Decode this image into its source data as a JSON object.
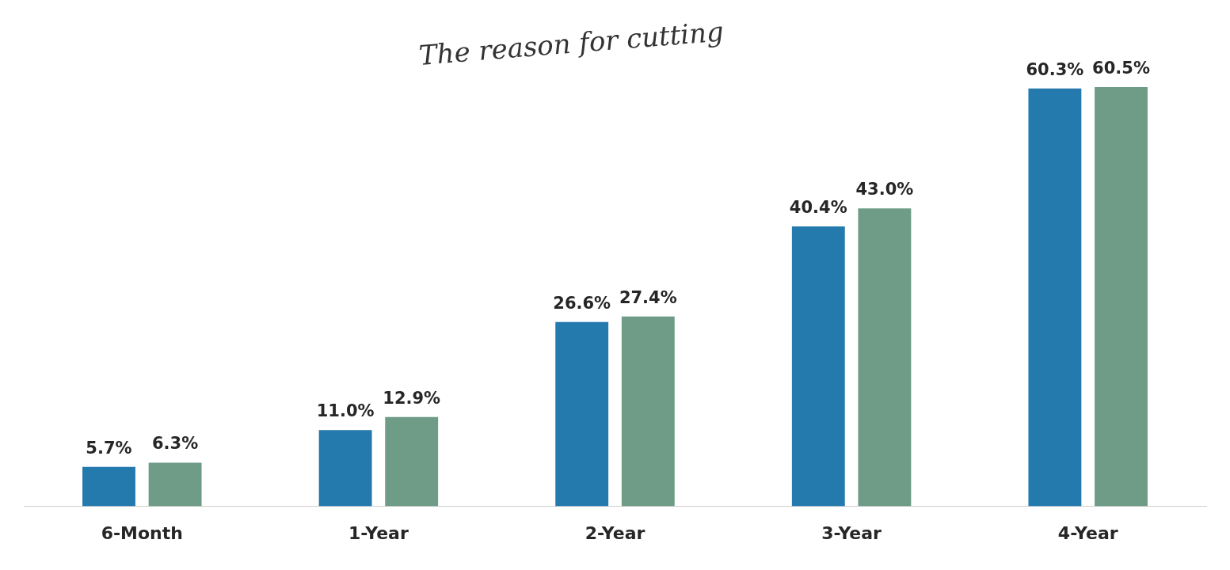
{
  "chart_data": {
    "type": "bar",
    "categories": [
      "6-Month",
      "1-Year",
      "2-Year",
      "3-Year",
      "4-Year"
    ],
    "series": [
      {
        "color": "#2479ad",
        "values": [
          5.7,
          11.0,
          26.6,
          40.4,
          60.3
        ],
        "value_labels": [
          "5.7%",
          "11.0%",
          "26.6%",
          "40.4%",
          "60.3%"
        ]
      },
      {
        "color": "#6e9c87",
        "values": [
          6.3,
          12.9,
          27.4,
          43.0,
          60.5
        ],
        "value_labels": [
          "6.3%",
          "12.9%",
          "27.4%",
          "43.0%",
          "60.5%"
        ]
      }
    ],
    "annotations": [
      "The reason for cutting"
    ],
    "legend": false,
    "grid": false
  }
}
